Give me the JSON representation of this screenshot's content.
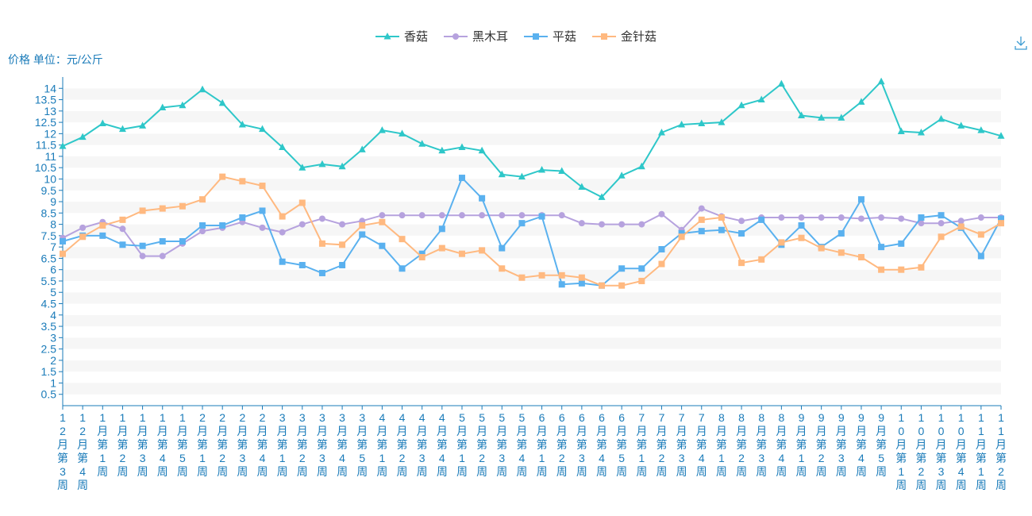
{
  "chart_data": {
    "type": "line",
    "unit_label": "价格 单位：元/公斤",
    "ylim": [
      0,
      14.5
    ],
    "y_ticks": [
      "0.5",
      "1",
      "1.5",
      "2",
      "2.5",
      "3",
      "3.5",
      "4",
      "4.5",
      "5",
      "5.5",
      "6",
      "6.5",
      "7",
      "7.5",
      "8",
      "8.5",
      "9",
      "9.5",
      "10",
      "10.5",
      "11",
      "11.5",
      "12",
      "12.5",
      "13",
      "13.5",
      "14"
    ],
    "y_tick_values": [
      0.5,
      1,
      1.5,
      2,
      2.5,
      3,
      3.5,
      4,
      4.5,
      5,
      5.5,
      6,
      6.5,
      7,
      7.5,
      8,
      8.5,
      9,
      9.5,
      10,
      10.5,
      11,
      11.5,
      12,
      12.5,
      13,
      13.5,
      14
    ],
    "grid": "horizontal-bands",
    "legend_position": "top-center",
    "categories": [
      "12月第3周",
      "12月第4周",
      "1月第1周",
      "1月第2周",
      "1月第3周",
      "1月第4周",
      "1月第5周",
      "2月第1周",
      "2月第2周",
      "2月第3周",
      "2月第4周",
      "3月第1周",
      "3月第2周",
      "3月第3周",
      "3月第4周",
      "3月第5周",
      "4月第1周",
      "4月第2周",
      "4月第3周",
      "4月第4周",
      "5月第1周",
      "5月第2周",
      "5月第3周",
      "5月第4周",
      "6月第1周",
      "6月第2周",
      "6月第3周",
      "6月第4周",
      "6月第5周",
      "7月第1周",
      "7月第2周",
      "7月第3周",
      "7月第4周",
      "8月第1周",
      "8月第2周",
      "8月第3周",
      "8月第4周",
      "9月第1周",
      "9月第2周",
      "9月第3周",
      "9月第4周",
      "9月第5周",
      "10月第1周",
      "10月第2周",
      "10月第3周",
      "10月第4周",
      "11月第1周",
      "11月第2周"
    ],
    "series": [
      {
        "name": "香菇",
        "color": "#2ec7c9",
        "marker": "triangle",
        "values": [
          11.45,
          11.85,
          12.45,
          12.2,
          12.35,
          13.15,
          13.25,
          13.95,
          13.35,
          12.4,
          12.2,
          11.4,
          10.5,
          10.65,
          10.55,
          11.3,
          12.15,
          12.0,
          11.55,
          11.25,
          11.4,
          11.25,
          10.2,
          10.1,
          10.4,
          10.35,
          9.65,
          9.2,
          10.15,
          10.55,
          12.05,
          12.4,
          12.45,
          12.5,
          13.25,
          13.5,
          14.2,
          12.8,
          12.7,
          12.7,
          13.4,
          14.3,
          12.1,
          12.05,
          12.65,
          12.35,
          12.15,
          11.9
        ]
      },
      {
        "name": "黑木耳",
        "color": "#b6a2de",
        "marker": "circle",
        "values": [
          7.4,
          7.85,
          8.1,
          7.8,
          6.6,
          6.6,
          7.15,
          7.7,
          7.85,
          8.1,
          7.85,
          7.65,
          8.0,
          8.25,
          8.0,
          8.15,
          8.4,
          8.4,
          8.4,
          8.4,
          8.4,
          8.4,
          8.4,
          8.4,
          8.4,
          8.4,
          8.05,
          8.0,
          8.0,
          8.0,
          8.45,
          7.75,
          8.7,
          8.35,
          8.15,
          8.3,
          8.3,
          8.3,
          8.3,
          8.3,
          8.25,
          8.3,
          8.25,
          8.05,
          8.05,
          8.15,
          8.3,
          8.3
        ]
      },
      {
        "name": "平菇",
        "color": "#5ab1ef",
        "marker": "square",
        "values": [
          7.25,
          7.5,
          7.5,
          7.1,
          7.05,
          7.25,
          7.25,
          7.95,
          7.95,
          8.3,
          8.6,
          6.35,
          6.2,
          5.85,
          6.2,
          7.55,
          7.05,
          6.05,
          6.7,
          7.8,
          10.05,
          9.15,
          6.95,
          8.05,
          8.35,
          5.35,
          5.4,
          5.3,
          6.05,
          6.05,
          6.9,
          7.6,
          7.7,
          7.75,
          7.6,
          8.2,
          7.1,
          7.95,
          7.0,
          7.6,
          9.1,
          7.0,
          7.15,
          8.3,
          8.4,
          7.85,
          6.6,
          8.25
        ]
      },
      {
        "name": "金针菇",
        "color": "#ffb980",
        "marker": "square",
        "values": [
          6.7,
          7.45,
          7.95,
          8.2,
          8.6,
          8.7,
          8.8,
          9.1,
          10.1,
          9.9,
          9.7,
          8.35,
          8.95,
          7.15,
          7.1,
          7.95,
          8.1,
          7.35,
          6.55,
          6.95,
          6.7,
          6.85,
          6.05,
          5.65,
          5.75,
          5.75,
          5.65,
          5.3,
          5.3,
          5.5,
          6.25,
          7.45,
          8.2,
          8.3,
          6.3,
          6.45,
          7.2,
          7.4,
          6.95,
          6.75,
          6.55,
          6.0,
          6.0,
          6.1,
          7.45,
          7.9,
          7.55,
          8.05
        ]
      }
    ]
  }
}
